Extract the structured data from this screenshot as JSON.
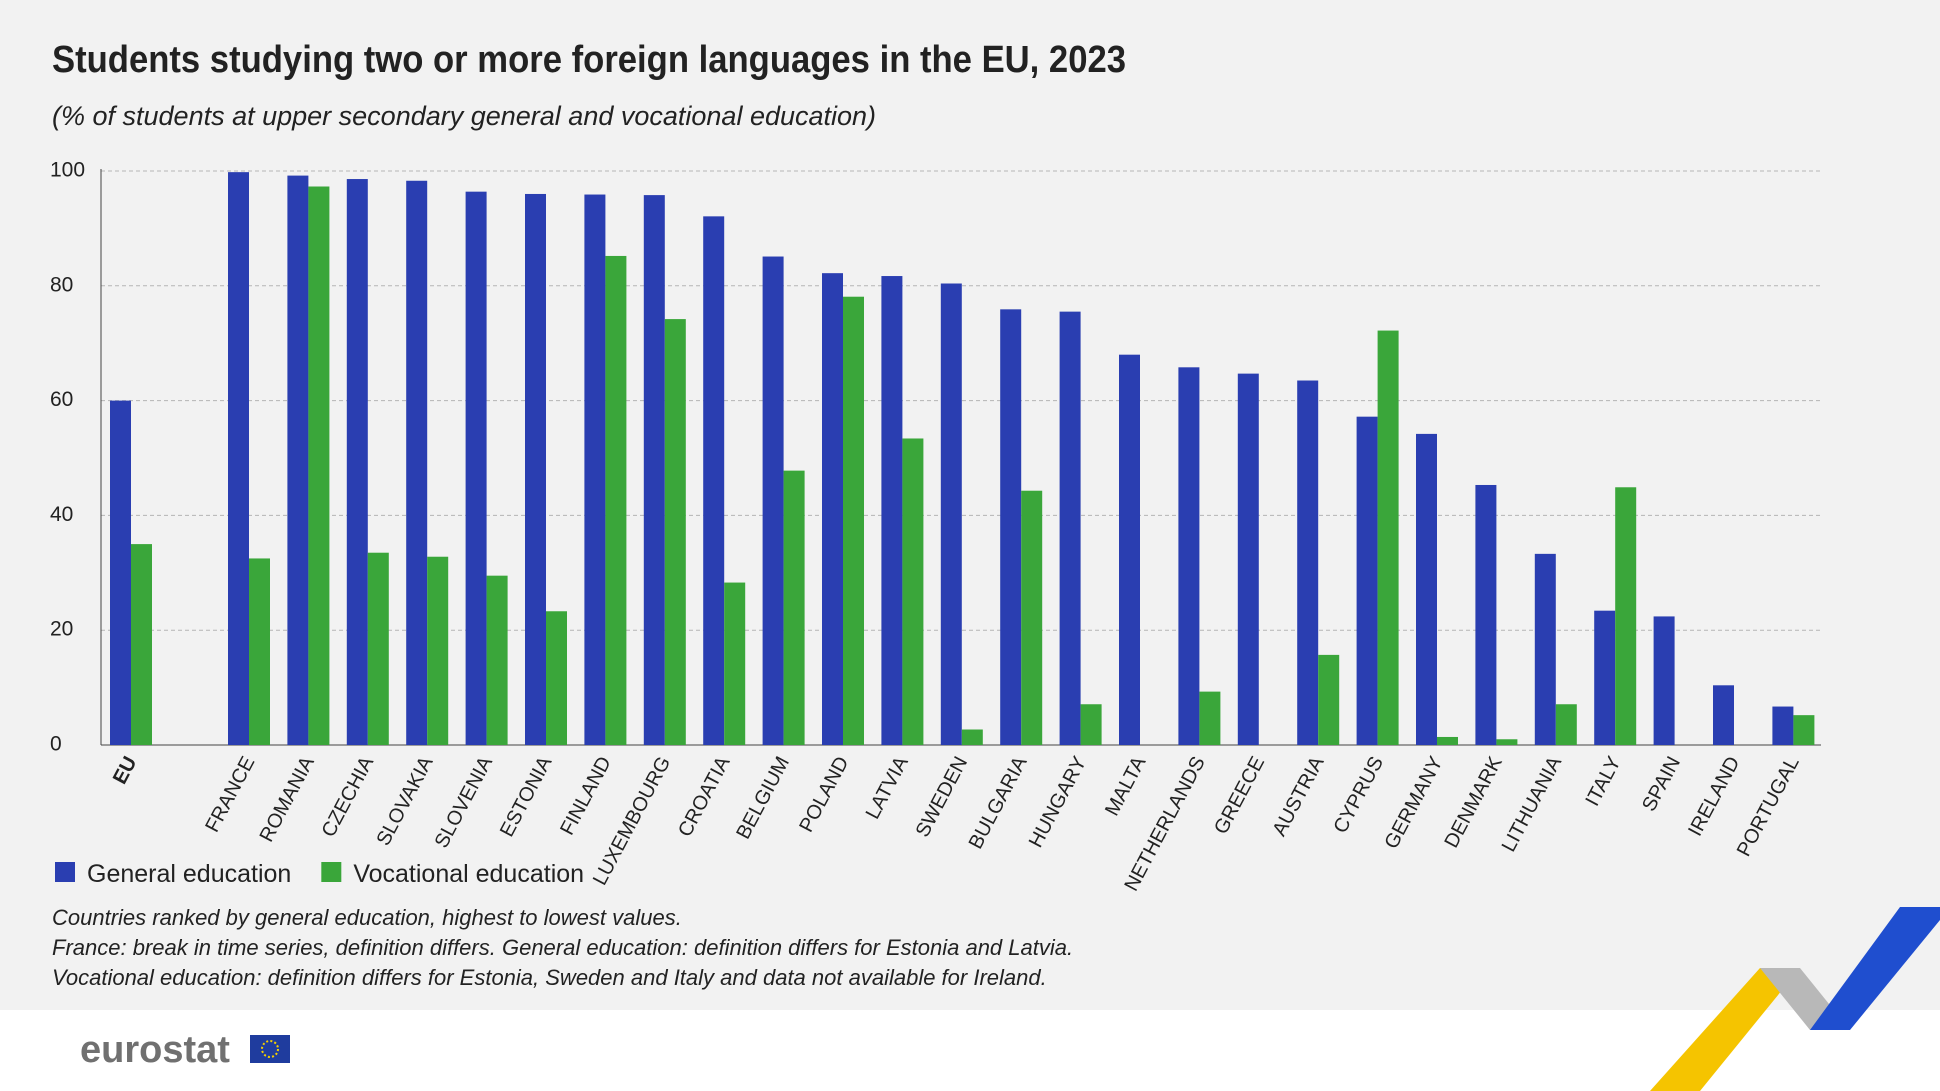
{
  "chart_data": {
    "type": "bar",
    "title": "Students studying two or more foreign languages in the EU, 2023",
    "subtitle": "(% of students at upper secondary general and vocational education)",
    "categories": [
      "EU",
      "FRANCE",
      "ROMANIA",
      "CZECHIA",
      "SLOVAKIA",
      "SLOVENIA",
      "ESTONIA",
      "FINLAND",
      "LUXEMBOURG",
      "CROATIA",
      "BELGIUM",
      "POLAND",
      "LATVIA",
      "SWEDEN",
      "BULGARIA",
      "HUNGARY",
      "MALTA",
      "NETHERLANDS",
      "GREECE",
      "AUSTRIA",
      "CYPRUS",
      "GERMANY",
      "DENMARK",
      "LITHUANIA",
      "ITALY",
      "SPAIN",
      "IRELAND",
      "PORTUGAL"
    ],
    "series": [
      {
        "name": "General education",
        "color": "#2a3eb1",
        "values": [
          60,
          99.8,
          99.2,
          98.6,
          98.3,
          96.4,
          96,
          95.9,
          95.8,
          92.1,
          85.1,
          82.2,
          81.7,
          80.4,
          75.9,
          75.5,
          68,
          65.8,
          64.7,
          63.5,
          57.2,
          54.2,
          45.3,
          33.3,
          23.4,
          22.4,
          10.4,
          6.7
        ]
      },
      {
        "name": "Vocational education",
        "color": "#3aa63a",
        "values": [
          35,
          32.5,
          97.3,
          33.5,
          32.8,
          29.5,
          23.3,
          85.2,
          74.2,
          28.3,
          47.8,
          78.1,
          53.4,
          2.7,
          44.3,
          7.1,
          null,
          9.3,
          null,
          15.7,
          72.2,
          1.4,
          1.0,
          7.1,
          44.9,
          null,
          null,
          5.2
        ]
      }
    ],
    "ylim": [
      0,
      100
    ],
    "yticks": [
      0,
      20,
      40,
      60,
      80,
      100
    ],
    "grid": true,
    "notes": [
      "Countries ranked by general education, highest to lowest values.",
      "France: break in time series, definition differs. General education: definition differs for Estonia and Latvia.",
      "Vocational education: definition differs for Estonia, Sweden and Italy and data not available for Ireland."
    ],
    "source": "eurostat"
  }
}
